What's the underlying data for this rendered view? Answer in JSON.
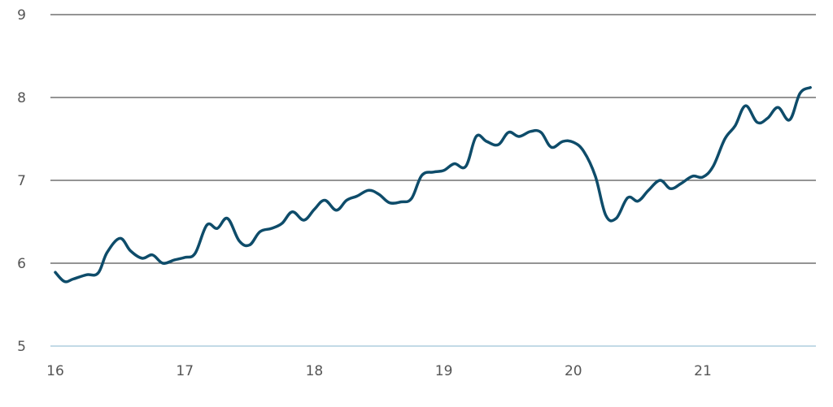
{
  "chart_data": {
    "type": "line",
    "title": "",
    "xlabel": "",
    "ylabel": "",
    "xlim": [
      16,
      21.85
    ],
    "ylim": [
      5,
      9
    ],
    "x_ticks": [
      16,
      17,
      18,
      19,
      20,
      21
    ],
    "x_tick_labels": [
      "16",
      "17",
      "18",
      "19",
      "20",
      "21"
    ],
    "y_ticks": [
      5,
      6,
      7,
      8,
      9
    ],
    "y_tick_labels": [
      "5",
      "6",
      "7",
      "8",
      "9"
    ],
    "grid": "horizontal",
    "legend": "none",
    "colors": {
      "line": "#0e4c6a",
      "grid": "#555555",
      "baseline": "#9ec3d6",
      "text": "#555555"
    },
    "series": [
      {
        "x": [
          16.0,
          16.07,
          16.14,
          16.24,
          16.33,
          16.4,
          16.5,
          16.58,
          16.67,
          16.75,
          16.83,
          16.92,
          17.0,
          17.08,
          17.17,
          17.25,
          17.33,
          17.42,
          17.5,
          17.58,
          17.67,
          17.75,
          17.83,
          17.92,
          18.0,
          18.08,
          18.17,
          18.25,
          18.33,
          18.42,
          18.5,
          18.58,
          18.67,
          18.75,
          18.83,
          18.92,
          19.0,
          19.08,
          19.17,
          19.25,
          19.33,
          19.42,
          19.5,
          19.58,
          19.67,
          19.75,
          19.83,
          19.92,
          20.0,
          20.08,
          20.17,
          20.25,
          20.33,
          20.42,
          20.5,
          20.58,
          20.67,
          20.75,
          20.83,
          20.92,
          21.0,
          21.08,
          21.17,
          21.25,
          21.33,
          21.42,
          21.5,
          21.58,
          21.67,
          21.75,
          21.83
        ],
        "y": [
          5.89,
          5.78,
          5.81,
          5.86,
          5.88,
          6.13,
          6.3,
          6.15,
          6.06,
          6.1,
          6.0,
          6.04,
          6.07,
          6.12,
          6.46,
          6.42,
          6.54,
          6.27,
          6.22,
          6.38,
          6.42,
          6.48,
          6.62,
          6.52,
          6.65,
          6.76,
          6.64,
          6.76,
          6.81,
          6.88,
          6.83,
          6.73,
          6.74,
          6.78,
          7.06,
          7.1,
          7.12,
          7.2,
          7.17,
          7.53,
          7.47,
          7.43,
          7.58,
          7.53,
          7.59,
          7.58,
          7.4,
          7.47,
          7.46,
          7.35,
          7.05,
          6.58,
          6.54,
          6.79,
          6.75,
          6.88,
          7.0,
          6.9,
          6.96,
          7.05,
          7.04,
          7.17,
          7.5,
          7.66,
          7.9,
          7.7,
          7.75,
          7.88,
          7.73,
          8.05,
          8.12
        ]
      }
    ]
  }
}
